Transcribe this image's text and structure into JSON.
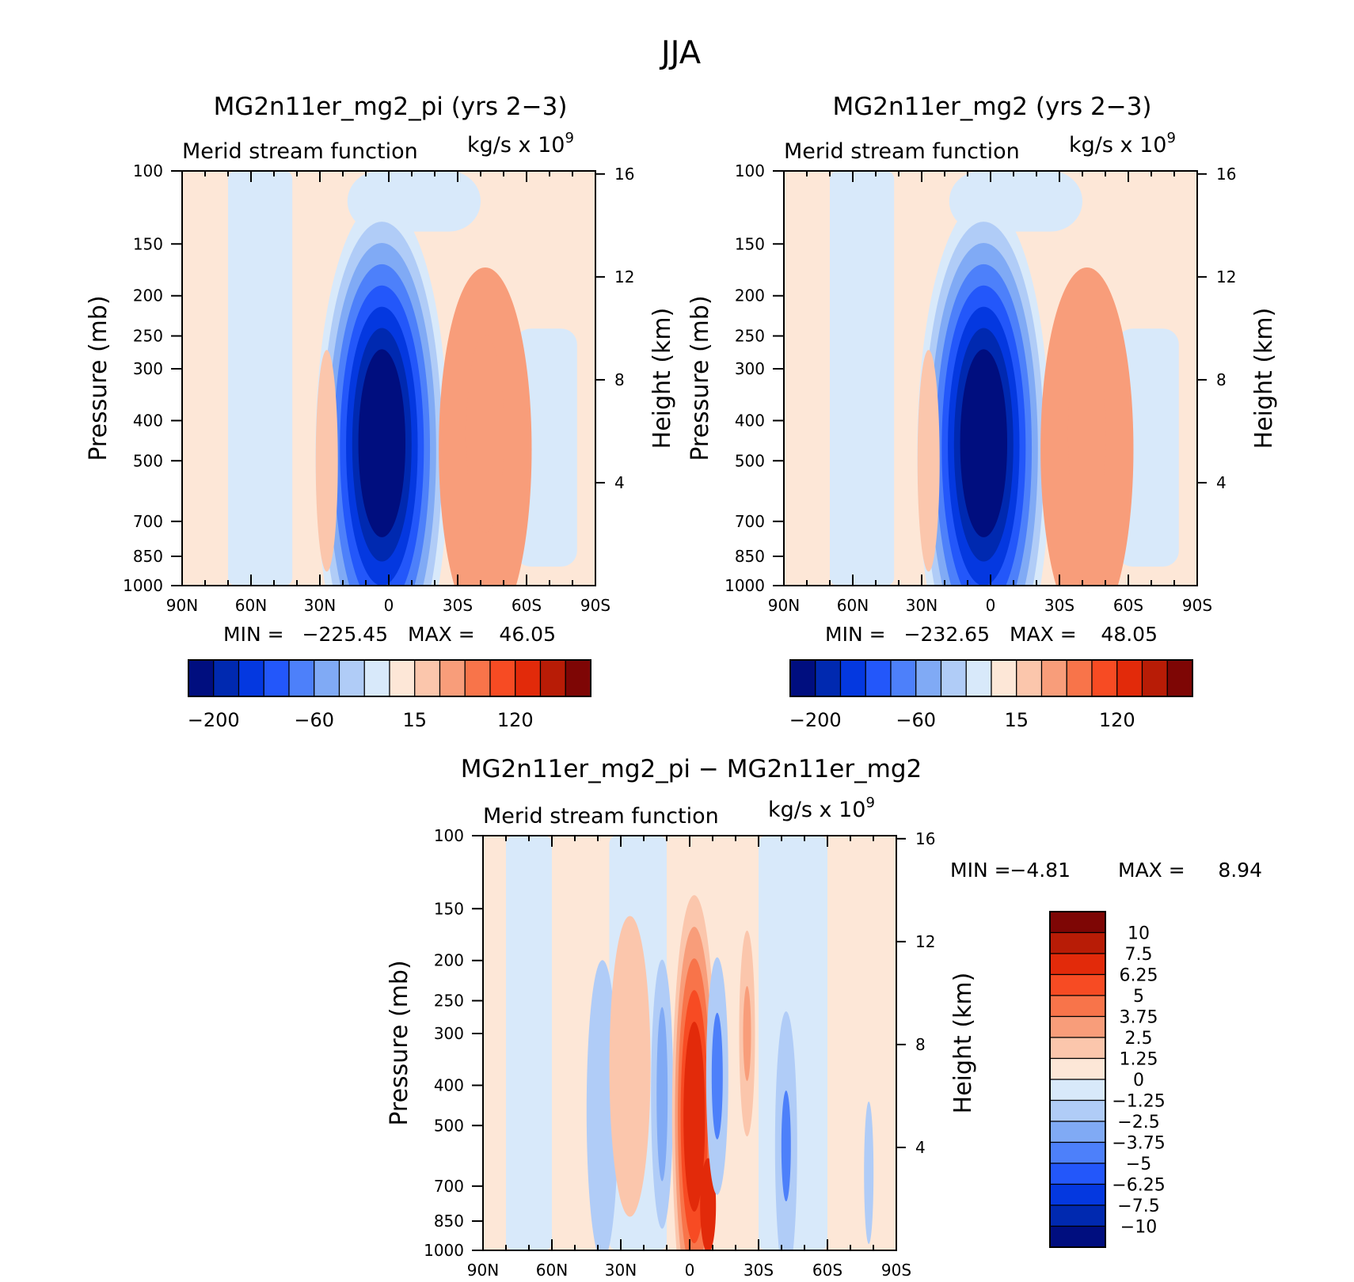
{
  "figure": {
    "title": "JJA"
  },
  "colors": {
    "blues": [
      "#000E7F",
      "#0029B0",
      "#0438E0",
      "#2357FA",
      "#4D80FA",
      "#80AAF5",
      "#B0CCF7",
      "#D8E9FA"
    ],
    "reds": [
      "#FDE7D7",
      "#FBC6AC",
      "#F89D7A",
      "#F8744A",
      "#F74B23",
      "#E22A0A",
      "#B81C06",
      "#7E0605"
    ],
    "axis": "#000000",
    "background": "#ffffff"
  },
  "chart_data": [
    {
      "type": "contour",
      "title": "MG2n11er_mg2_pi (yrs 2−3)",
      "subtitle_left": "Merid stream function",
      "subtitle_right": "kg/s x 10",
      "subtitle_exp": "9",
      "xlabel": "",
      "ylabel": "Pressure (mb)",
      "ylabel_right": "Height (km)",
      "x_ticks": [
        "90N",
        "60N",
        "30N",
        "0",
        "30S",
        "60S",
        "90S"
      ],
      "x_range": [
        90,
        -90
      ],
      "y_ticks": [
        100,
        150,
        200,
        250,
        300,
        400,
        500,
        700,
        850,
        1000
      ],
      "y_range": [
        100,
        1000
      ],
      "y_scale": "log",
      "right_ticks": [
        4,
        8,
        12,
        16
      ],
      "min": -225.45,
      "max": 46.05,
      "min_label": "MIN =",
      "max_label": "MAX =",
      "min_text": "−225.45",
      "max_text": "46.05",
      "colorbar_labels": [
        "−200",
        "−60",
        "15",
        "120"
      ],
      "features": [
        {
          "lat": 3,
          "p": 450,
          "value": -225.45
        },
        {
          "lat": -42,
          "p": 430,
          "value": 46.05
        },
        {
          "lat": 27,
          "p": 500,
          "value": 8
        }
      ]
    },
    {
      "type": "contour",
      "title": "MG2n11er_mg2 (yrs 2−3)",
      "subtitle_left": "Merid stream function",
      "subtitle_right": "kg/s x 10",
      "subtitle_exp": "9",
      "xlabel": "",
      "ylabel": "Pressure (mb)",
      "ylabel_right": "Height (km)",
      "x_ticks": [
        "90N",
        "60N",
        "30N",
        "0",
        "30S",
        "60S",
        "90S"
      ],
      "x_range": [
        90,
        -90
      ],
      "y_ticks": [
        100,
        150,
        200,
        250,
        300,
        400,
        500,
        700,
        850,
        1000
      ],
      "y_range": [
        100,
        1000
      ],
      "y_scale": "log",
      "right_ticks": [
        4,
        8,
        12,
        16
      ],
      "min": -232.65,
      "max": 48.05,
      "min_label": "MIN =",
      "max_label": "MAX =",
      "min_text": "−232.65",
      "max_text": "48.05",
      "colorbar_labels": [
        "−200",
        "−60",
        "15",
        "120"
      ],
      "features": [
        {
          "lat": 3,
          "p": 450,
          "value": -232.65
        },
        {
          "lat": -42,
          "p": 430,
          "value": 48.05
        },
        {
          "lat": 27,
          "p": 500,
          "value": 8
        }
      ]
    },
    {
      "type": "contour",
      "title": "MG2n11er_mg2_pi − MG2n11er_mg2",
      "subtitle_left": "Merid stream function",
      "subtitle_right": "kg/s x 10",
      "subtitle_exp": "9",
      "xlabel": "",
      "ylabel": "Pressure (mb)",
      "ylabel_right": "Height (km)",
      "x_ticks": [
        "90N",
        "60N",
        "30N",
        "0",
        "30S",
        "60S",
        "90S"
      ],
      "x_range": [
        90,
        -90
      ],
      "y_ticks": [
        100,
        150,
        200,
        250,
        300,
        400,
        500,
        700,
        850,
        1000
      ],
      "y_range": [
        100,
        1000
      ],
      "y_scale": "log",
      "right_ticks": [
        4,
        8,
        12,
        16
      ],
      "min": -4.81,
      "max": 8.94,
      "min_label": "MIN =",
      "max_label": "MAX =",
      "min_text": "−4.81",
      "max_text": "8.94",
      "colorbar_labels": [
        "10",
        "7.5",
        "6.25",
        "5",
        "3.75",
        "2.5",
        "1.25",
        "0",
        "−1.25",
        "−2.5",
        "−3.75",
        "−5",
        "−6.25",
        "−7.5",
        "−10"
      ],
      "features": [
        {
          "lat": -2,
          "p": 350,
          "value": 8.94
        },
        {
          "lat": -12,
          "p": 380,
          "value": -4.81
        },
        {
          "lat": 12,
          "p": 400,
          "value": -3.5
        },
        {
          "lat": -25,
          "p": 300,
          "value": 3.5
        }
      ]
    }
  ]
}
